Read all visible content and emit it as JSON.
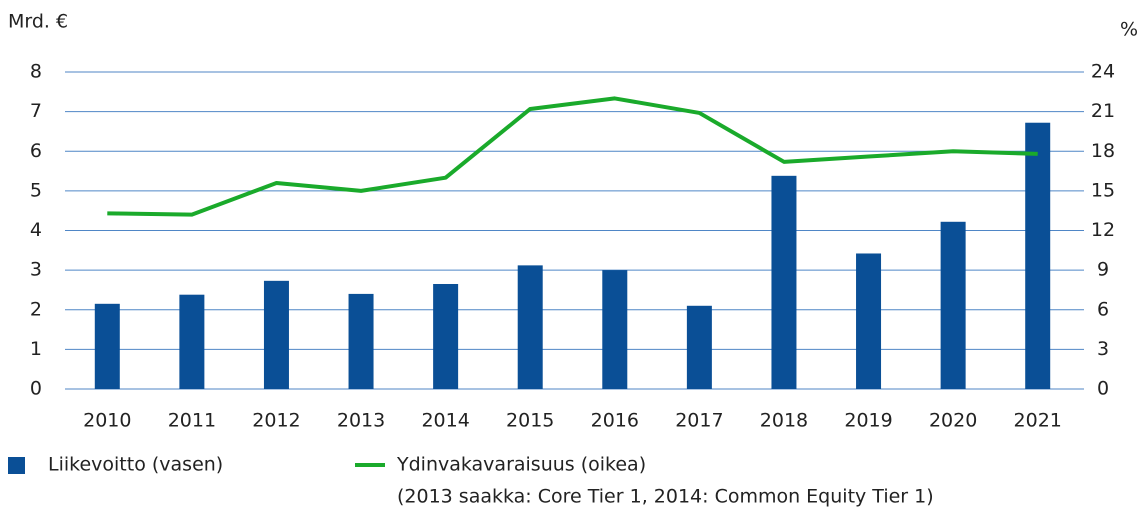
{
  "chart_data": {
    "type": "bar",
    "y_axis_label": "Mrd. €",
    "y2_axis_label": "%",
    "categories": [
      "2010",
      "2011",
      "2012",
      "2013",
      "2014",
      "2015",
      "2016",
      "2017",
      "2018",
      "2019",
      "2020",
      "2021"
    ],
    "series": [
      {
        "name": "Liikevoitto (vasen)",
        "type": "bar",
        "color": "#0a4f96",
        "values": [
          2.15,
          2.38,
          2.73,
          2.4,
          2.65,
          3.12,
          3.0,
          2.1,
          5.38,
          3.42,
          4.22,
          6.72
        ]
      },
      {
        "name": "Ydinvakavaraisuus (oikea)",
        "type": "line",
        "axis": "y2",
        "color": "#1aaa2b",
        "values": [
          13.3,
          13.2,
          15.6,
          15.0,
          16.0,
          21.2,
          22.0,
          20.9,
          17.2,
          17.6,
          18.0,
          17.8
        ]
      }
    ],
    "legend_note": "(2013 saakka: Core Tier 1, 2014: Common Equity Tier 1)",
    "ylim": [
      0,
      8
    ],
    "yticks": [
      0,
      1,
      2,
      3,
      4,
      5,
      6,
      7,
      8
    ],
    "y2lim": [
      0,
      24
    ],
    "y2ticks": [
      0,
      3,
      6,
      9,
      12,
      15,
      18,
      21,
      24
    ],
    "grid": true,
    "legend_position": "bottom"
  }
}
